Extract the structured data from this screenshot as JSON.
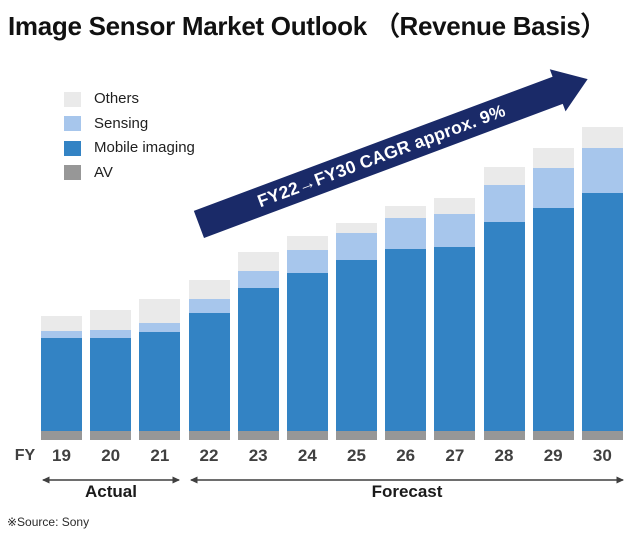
{
  "title": "Image Sensor Market Outlook （Revenue Basis）",
  "banner": {
    "text": "FY22→FY30  CAGR approx. 9%",
    "color": "#1a2a68",
    "text_color": "#ffffff"
  },
  "legend": {
    "items": [
      {
        "label": "Others",
        "color": "#eaeaea"
      },
      {
        "label": "Sensing",
        "color": "#a7c6ec"
      },
      {
        "label": "Mobile imaging",
        "color": "#3383c4"
      },
      {
        "label": "AV",
        "color": "#979797"
      }
    ]
  },
  "axis": {
    "fy_label": "FY",
    "years": [
      "19",
      "20",
      "21",
      "22",
      "23",
      "24",
      "25",
      "26",
      "27",
      "28",
      "29",
      "30"
    ],
    "actual_label": "Actual",
    "forecast_label": "Forecast"
  },
  "source": "※Source: Sony",
  "chart_data": {
    "type": "bar",
    "stacked": true,
    "title": "Image Sensor Market Outlook (Revenue Basis)",
    "categories": [
      "FY19",
      "FY20",
      "FY21",
      "FY22",
      "FY23",
      "FY24",
      "FY25",
      "FY26",
      "FY27",
      "FY28",
      "FY29",
      "FY30"
    ],
    "units": "indexed revenue (no numeric axis shown); FY22 total = 100",
    "series": [
      {
        "name": "AV",
        "color": "#979797",
        "values": [
          5.6,
          5.6,
          5.6,
          5.6,
          5.6,
          5.6,
          5.6,
          5.6,
          5.6,
          5.6,
          5.6,
          5.6
        ]
      },
      {
        "name": "Mobile imaging",
        "color": "#3383c4",
        "values": [
          58.1,
          58.4,
          62.2,
          73.9,
          89.6,
          98.9,
          106.9,
          113.6,
          115.0,
          130.6,
          139.6,
          148.9
        ]
      },
      {
        "name": "Sensing",
        "color": "#a7c6ec",
        "values": [
          4.7,
          4.7,
          5.3,
          8.4,
          10.6,
          14.2,
          17.1,
          19.4,
          20.4,
          22.9,
          25.0,
          27.8
        ]
      },
      {
        "name": "Others",
        "color": "#eaeaea",
        "values": [
          9.4,
          12.5,
          15.0,
          12.1,
          11.9,
          8.8,
          6.3,
          7.7,
          10.4,
          11.4,
          12.3,
          13.5
        ]
      }
    ],
    "totals": [
      77.8,
      81.2,
      88.1,
      100.0,
      117.7,
      127.5,
      135.9,
      146.3,
      151.4,
      170.5,
      182.5,
      195.8
    ],
    "annotation": "FY22→FY30 CAGR approx. 9%",
    "x_ranges": [
      {
        "label": "Actual",
        "from": "FY19",
        "to": "FY21"
      },
      {
        "label": "Forecast",
        "from": "FY22",
        "to": "FY30"
      }
    ],
    "legend_position": "top-left",
    "grid": false
  }
}
